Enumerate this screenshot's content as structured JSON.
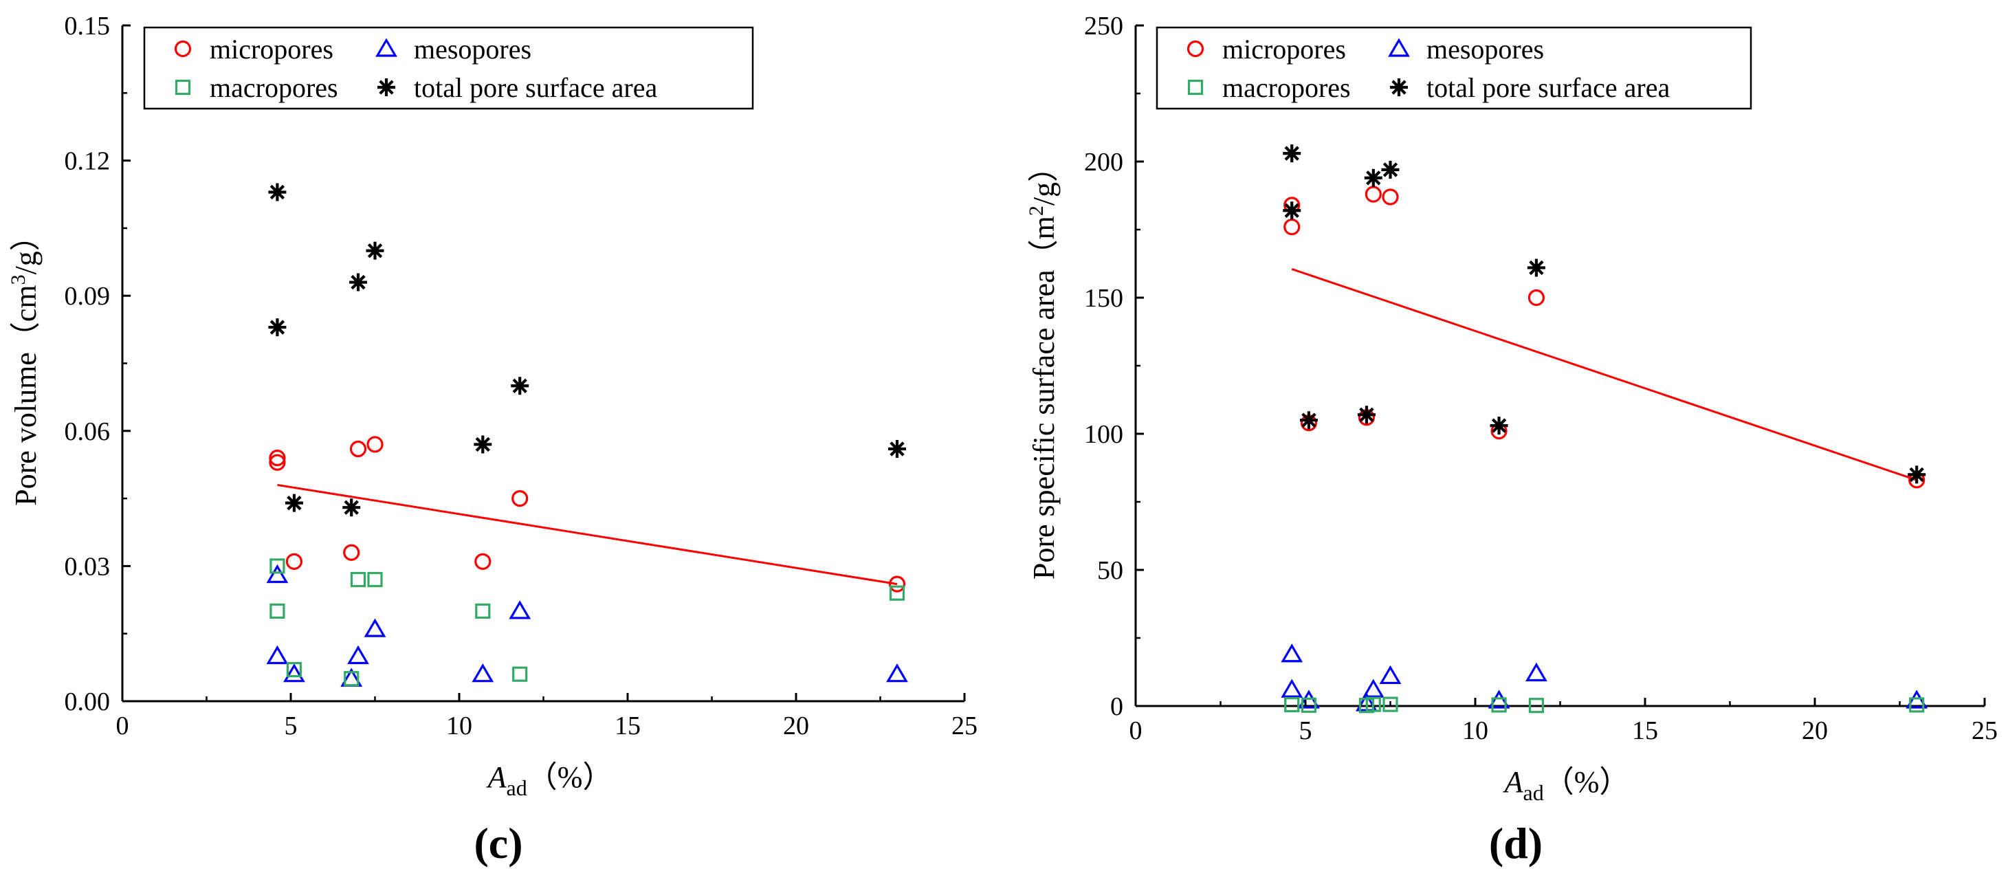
{
  "colors": {
    "micropores": "#ff0000",
    "mesopores": "#0000ff",
    "macropores": "#33aa66",
    "total": "#000000",
    "fit": "#ff0000"
  },
  "chart_data": [
    {
      "type": "scatter",
      "panel": "(c)",
      "xlabel_main": "A",
      "xlabel_sub": "ad",
      "xlabel_unit": "（%）",
      "ylabel_text": "Pore volume（cm",
      "ylabel_sup": "3",
      "ylabel_tail": "/g）",
      "xlim": [
        0,
        25
      ],
      "ylim": [
        0,
        0.15
      ],
      "xticks": [
        "0",
        "5",
        "10",
        "15",
        "20",
        "25"
      ],
      "yticks": [
        "0.00",
        "0.03",
        "0.06",
        "0.09",
        "0.12",
        "0.15"
      ],
      "legend": [
        "micropores",
        "mesopores",
        "macropores",
        "total pore surface area"
      ],
      "series": [
        {
          "name": "micropores",
          "marker": "circle",
          "x": [
            4.6,
            4.6,
            5.1,
            6.8,
            7.0,
            7.5,
            10.7,
            11.8,
            23.0
          ],
          "y": [
            0.054,
            0.053,
            0.031,
            0.033,
            0.056,
            0.057,
            0.031,
            0.045,
            0.026
          ]
        },
        {
          "name": "mesopores",
          "marker": "triangle",
          "x": [
            4.6,
            4.6,
            5.1,
            6.8,
            7.0,
            7.5,
            10.7,
            11.8,
            23.0
          ],
          "y": [
            0.028,
            0.01,
            0.006,
            0.005,
            0.01,
            0.016,
            0.006,
            0.02,
            0.006
          ]
        },
        {
          "name": "macropores",
          "marker": "square",
          "x": [
            4.6,
            4.6,
            5.1,
            6.8,
            7.0,
            7.5,
            10.7,
            11.8,
            23.0
          ],
          "y": [
            0.03,
            0.02,
            0.007,
            0.005,
            0.027,
            0.027,
            0.02,
            0.006,
            0.024
          ]
        },
        {
          "name": "total pore surface area",
          "marker": "star",
          "x": [
            4.6,
            4.6,
            5.1,
            6.8,
            7.0,
            7.5,
            10.7,
            11.8,
            23.0
          ],
          "y": [
            0.113,
            0.083,
            0.044,
            0.043,
            0.093,
            0.1,
            0.057,
            0.07,
            0.056
          ]
        }
      ],
      "fit_line": {
        "x": [
          4.6,
          23.0
        ],
        "y": [
          0.048,
          0.026
        ]
      }
    },
    {
      "type": "scatter",
      "panel": "(d)",
      "xlabel_main": "A",
      "xlabel_sub": "ad",
      "xlabel_unit": "（%）",
      "ylabel_text": "Pore specific surface area（m",
      "ylabel_sup": "2",
      "ylabel_tail": "/g）",
      "xlim": [
        0,
        25
      ],
      "ylim": [
        0,
        250
      ],
      "xticks": [
        "0",
        "5",
        "10",
        "15",
        "20",
        "25"
      ],
      "yticks": [
        "0",
        "50",
        "100",
        "150",
        "200",
        "250"
      ],
      "legend": [
        "micropores",
        "mesopores",
        "macropores",
        "total pore surface area"
      ],
      "series": [
        {
          "name": "micropores",
          "marker": "circle",
          "x": [
            4.6,
            4.6,
            5.1,
            6.8,
            7.0,
            7.5,
            10.7,
            11.8,
            23.0
          ],
          "y": [
            184,
            176,
            104,
            106,
            188,
            187,
            101,
            150,
            83
          ]
        },
        {
          "name": "mesopores",
          "marker": "triangle",
          "x": [
            4.6,
            4.6,
            5.1,
            6.8,
            7.0,
            7.5,
            10.7,
            11.8,
            23.0
          ],
          "y": [
            19,
            6,
            2,
            1,
            6,
            11,
            2,
            12,
            2
          ]
        },
        {
          "name": "macropores",
          "marker": "square",
          "x": [
            4.6,
            4.6,
            5.1,
            6.8,
            7.0,
            7.5,
            10.7,
            11.8,
            23.0
          ],
          "y": [
            0.5,
            0.5,
            0.3,
            0.2,
            0.6,
            0.6,
            0.4,
            0.2,
            0.4
          ]
        },
        {
          "name": "total pore surface area",
          "marker": "star",
          "x": [
            4.6,
            4.6,
            5.1,
            6.8,
            7.0,
            7.5,
            10.7,
            11.8,
            23.0
          ],
          "y": [
            203,
            182,
            105,
            107,
            194,
            197,
            103,
            161,
            85
          ]
        }
      ],
      "fit_line": {
        "x": [
          4.6,
          23.0
        ],
        "y": [
          160.5,
          83
        ]
      }
    }
  ]
}
